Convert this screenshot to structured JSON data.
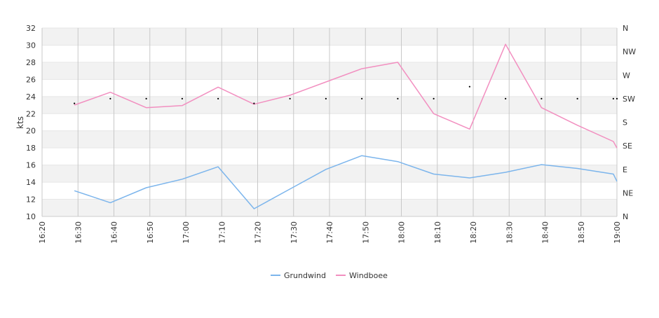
{
  "chart_data": {
    "type": "line",
    "ylabel": "kts",
    "ylim": [
      10,
      32
    ],
    "yticks": [
      "10",
      "12",
      "14",
      "16",
      "18",
      "20",
      "22",
      "24",
      "26",
      "28",
      "30",
      "32"
    ],
    "xlim": [
      "16:20",
      "19:00"
    ],
    "xticks": [
      "16:20",
      "16:30",
      "16:40",
      "16:50",
      "17:00",
      "17:10",
      "17:20",
      "17:30",
      "17:40",
      "17:50",
      "18:00",
      "18:10",
      "18:20",
      "18:30",
      "18:40",
      "18:50",
      "19:00"
    ],
    "right_axis": {
      "labels": [
        "N",
        "NE",
        "E",
        "SE",
        "S",
        "SW",
        "W",
        "NW",
        "N"
      ],
      "range_degrees": [
        0,
        360
      ]
    },
    "grid": true,
    "legend_position": "bottom-center",
    "series": [
      {
        "name": "Grundwind",
        "color": "#7cb5ec",
        "x": [
          "16:29",
          "16:39",
          "16:49",
          "16:59",
          "17:09",
          "17:19",
          "17:29",
          "17:39",
          "17:49",
          "17:59",
          "18:09",
          "18:19",
          "18:29",
          "18:39",
          "18:49",
          "18:59",
          "19:00"
        ],
        "values": [
          13.0,
          11.6,
          13.35,
          14.35,
          15.8,
          10.9,
          13.2,
          15.5,
          17.1,
          16.4,
          14.95,
          14.5,
          15.15,
          16.05,
          15.6,
          14.95,
          14.1
        ]
      },
      {
        "name": "Windboee",
        "color": "#f28fc0",
        "x": [
          "16:29",
          "16:39",
          "16:49",
          "16:59",
          "17:09",
          "17:19",
          "17:29",
          "17:39",
          "17:49",
          "17:59",
          "18:09",
          "18:19",
          "18:29",
          "18:39",
          "18:49",
          "18:59",
          "19:00"
        ],
        "values": [
          23.0,
          24.5,
          22.7,
          22.95,
          25.1,
          23.1,
          24.15,
          25.7,
          27.25,
          28.0,
          22.0,
          20.2,
          30.1,
          22.7,
          20.65,
          18.75,
          18.0
        ]
      },
      {
        "name": "",
        "kind": "direction-markers",
        "color": "#000000",
        "x": [
          "16:29",
          "16:39",
          "16:49",
          "16:59",
          "17:09",
          "17:19",
          "17:29",
          "17:39",
          "17:49",
          "17:59",
          "18:09",
          "18:19",
          "18:29",
          "18:39",
          "18:49",
          "18:59",
          "19:00"
        ],
        "direction_degrees": [
          216,
          225,
          225,
          225,
          225,
          216,
          225,
          225,
          225,
          225,
          225,
          248,
          225,
          225,
          225,
          225,
          225
        ]
      }
    ]
  },
  "colors": {
    "band": "#f2f2f2",
    "gridline": "#e6e6e6",
    "vgridline": "#c8c8c8",
    "axis": "#cccccc"
  }
}
